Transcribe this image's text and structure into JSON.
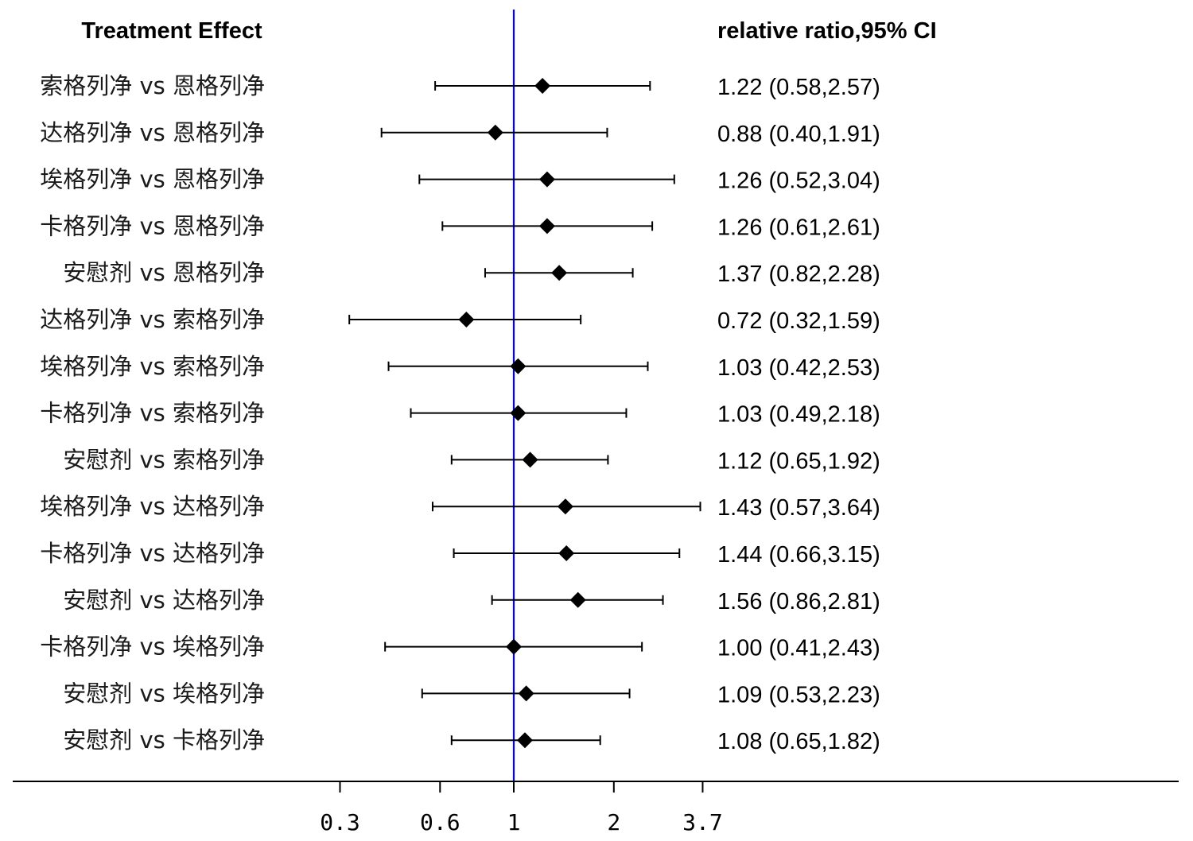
{
  "chart_data": {
    "type": "forest",
    "header_left": "Treatment Effect",
    "header_right": "relative ratio,95% CI",
    "x_scale": "log",
    "reference_value": 1,
    "xticks": [
      0.3,
      0.6,
      1,
      2,
      3.7
    ],
    "xtick_labels": [
      "0.3",
      "0.6",
      "1",
      "2",
      "3.7"
    ],
    "reference_line_color": "#0000ff",
    "rows": [
      {
        "label": "索格列净 vs 恩格列净",
        "estimate": 1.22,
        "lower": 0.58,
        "upper": 2.57,
        "text": "1.22 (0.58,2.57)"
      },
      {
        "label": "达格列净 vs 恩格列净",
        "estimate": 0.88,
        "lower": 0.4,
        "upper": 1.91,
        "text": "0.88 (0.40,1.91)"
      },
      {
        "label": "埃格列净 vs 恩格列净",
        "estimate": 1.26,
        "lower": 0.52,
        "upper": 3.04,
        "text": "1.26 (0.52,3.04)"
      },
      {
        "label": "卡格列净 vs 恩格列净",
        "estimate": 1.26,
        "lower": 0.61,
        "upper": 2.61,
        "text": "1.26 (0.61,2.61)"
      },
      {
        "label": "安慰剂 vs 恩格列净",
        "estimate": 1.37,
        "lower": 0.82,
        "upper": 2.28,
        "text": "1.37 (0.82,2.28)"
      },
      {
        "label": "达格列净 vs 索格列净",
        "estimate": 0.72,
        "lower": 0.32,
        "upper": 1.59,
        "text": "0.72 (0.32,1.59)"
      },
      {
        "label": "埃格列净 vs 索格列净",
        "estimate": 1.03,
        "lower": 0.42,
        "upper": 2.53,
        "text": "1.03 (0.42,2.53)"
      },
      {
        "label": "卡格列净 vs 索格列净",
        "estimate": 1.03,
        "lower": 0.49,
        "upper": 2.18,
        "text": "1.03 (0.49,2.18)"
      },
      {
        "label": "安慰剂 vs 索格列净",
        "estimate": 1.12,
        "lower": 0.65,
        "upper": 1.92,
        "text": "1.12 (0.65,1.92)"
      },
      {
        "label": "埃格列净 vs 达格列净",
        "estimate": 1.43,
        "lower": 0.57,
        "upper": 3.64,
        "text": "1.43 (0.57,3.64)"
      },
      {
        "label": "卡格列净 vs 达格列净",
        "estimate": 1.44,
        "lower": 0.66,
        "upper": 3.15,
        "text": "1.44 (0.66,3.15)"
      },
      {
        "label": "安慰剂 vs 达格列净",
        "estimate": 1.56,
        "lower": 0.86,
        "upper": 2.81,
        "text": "1.56 (0.86,2.81)"
      },
      {
        "label": "卡格列净 vs 埃格列净",
        "estimate": 1.0,
        "lower": 0.41,
        "upper": 2.43,
        "text": "1.00 (0.41,2.43)"
      },
      {
        "label": "安慰剂 vs 埃格列净",
        "estimate": 1.09,
        "lower": 0.53,
        "upper": 2.23,
        "text": "1.09 (0.53,2.23)"
      },
      {
        "label": "安慰剂 vs 卡格列净",
        "estimate": 1.08,
        "lower": 0.65,
        "upper": 1.82,
        "text": "1.08 (0.65,1.82)"
      }
    ]
  }
}
